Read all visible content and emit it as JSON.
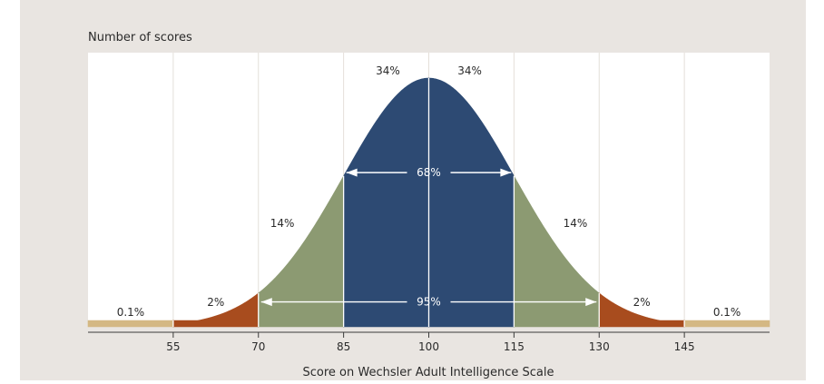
{
  "chart_data": {
    "type": "area",
    "title": "",
    "ylabel": "Number of scores",
    "xlabel": "Score on Wechsler Adult Intelligence Scale",
    "xlim": [
      40,
      160
    ],
    "x_ticks": [
      55,
      70,
      85,
      100,
      115,
      130,
      145
    ],
    "distribution": {
      "mean": 100,
      "sd": 15
    },
    "regions": [
      {
        "from": 40,
        "to": 55,
        "percent_label": "0.1%",
        "color": "#d4b883"
      },
      {
        "from": 55,
        "to": 70,
        "percent_label": "2%",
        "color": "#a84c1e"
      },
      {
        "from": 70,
        "to": 85,
        "percent_label": "14%",
        "color": "#8c9a72"
      },
      {
        "from": 85,
        "to": 100,
        "percent_label": "34%",
        "color": "#2d4a73"
      },
      {
        "from": 100,
        "to": 115,
        "percent_label": "34%",
        "color": "#2d4a73"
      },
      {
        "from": 115,
        "to": 130,
        "percent_label": "14%",
        "color": "#8c9a72"
      },
      {
        "from": 130,
        "to": 145,
        "percent_label": "2%",
        "color": "#a84c1e"
      },
      {
        "from": 145,
        "to": 160,
        "percent_label": "0.1%",
        "color": "#d4b883"
      }
    ],
    "spans": [
      {
        "from": 85,
        "to": 115,
        "label": "68%",
        "height_fraction": 0.62
      },
      {
        "from": 70,
        "to": 130,
        "label": "95%",
        "height_fraction": 0.1
      }
    ],
    "grid": true,
    "colors": {
      "background": "#e9e5e1",
      "plot_background": "#ffffff",
      "gridline": "#e4dfd9",
      "axis": "#3a3a3a",
      "text": "#2a2a2a",
      "span_line": "#ffffff"
    }
  }
}
